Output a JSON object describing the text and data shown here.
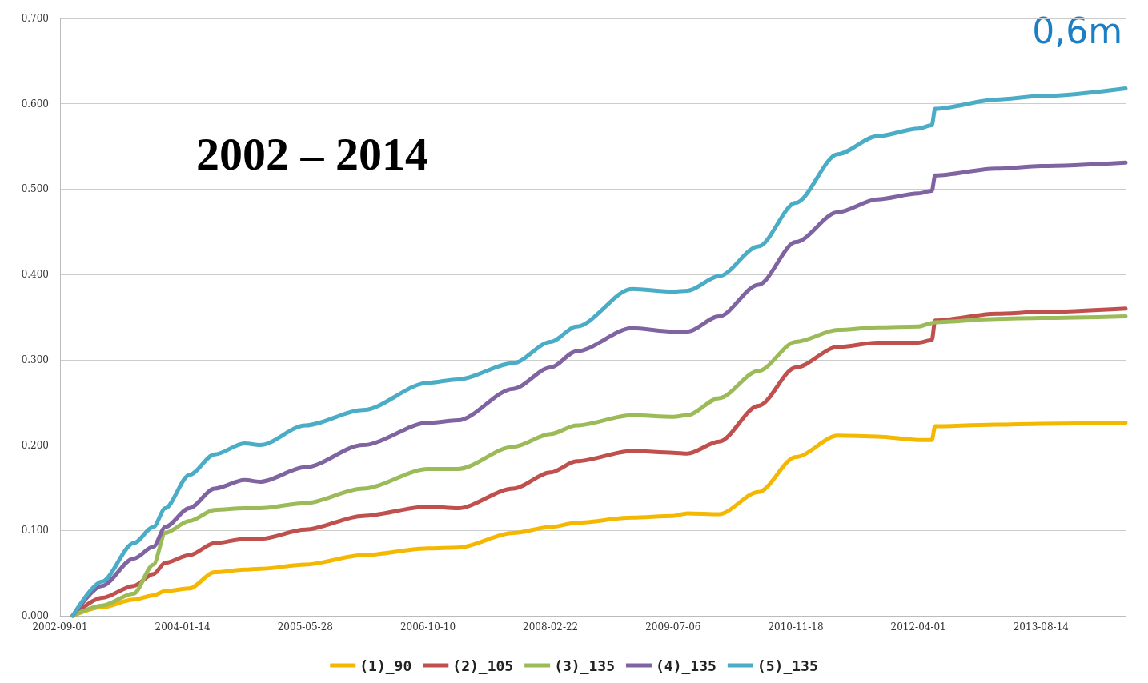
{
  "chart_data": {
    "type": "line",
    "x": [
      "2002-10-23",
      "2003-02-19",
      "2003-06-28",
      "2003-09-17",
      "2003-11-04",
      "2004-02-10",
      "2004-05-23",
      "2004-09-22",
      "2004-11-25",
      "2005-05-28",
      "2006-01-18",
      "2006-10-10",
      "2007-02-10",
      "2007-09-23",
      "2008-02-22",
      "2008-06-07",
      "2009-01-19",
      "2009-07-06",
      "2009-09-02",
      "2010-01-09",
      "2010-06-19",
      "2010-11-18",
      "2011-05-08",
      "2011-10-16",
      "2012-04-01",
      "2012-05-26",
      "2012-06-08",
      "2013-02-14",
      "2013-08-14",
      "2014-07-25"
    ],
    "series": [
      {
        "name": "(1)_90",
        "color": "#f5b800",
        "values": [
          0,
          0.01,
          0.019,
          0.024,
          0.029,
          0.032,
          0.051,
          0.054,
          0.055,
          0.06,
          0.071,
          0.079,
          0.08,
          0.097,
          0.104,
          0.109,
          0.115,
          0.117,
          0.12,
          0.119,
          0.145,
          0.186,
          0.211,
          0.21,
          0.206,
          0.206,
          0.222,
          0.224,
          0.225,
          0.226
        ]
      },
      {
        "name": "(2)_105",
        "color": "#c0504d",
        "values": [
          0,
          0.021,
          0.035,
          0.049,
          0.062,
          0.071,
          0.085,
          0.09,
          0.09,
          0.101,
          0.117,
          0.128,
          0.126,
          0.149,
          0.168,
          0.181,
          0.193,
          0.191,
          0.19,
          0.204,
          0.246,
          0.291,
          0.315,
          0.32,
          0.32,
          0.323,
          0.346,
          0.354,
          0.356,
          0.36
        ]
      },
      {
        "name": "(3)_135",
        "color": "#9bbb59",
        "values": [
          0,
          0.012,
          0.026,
          0.06,
          0.097,
          0.111,
          0.124,
          0.126,
          0.126,
          0.132,
          0.149,
          0.172,
          0.172,
          0.198,
          0.213,
          0.223,
          0.235,
          0.233,
          0.235,
          0.255,
          0.287,
          0.321,
          0.335,
          0.338,
          0.339,
          0.343,
          0.344,
          0.348,
          0.349,
          0.351
        ]
      },
      {
        "name": "(4)_135",
        "color": "#8064a2",
        "values": [
          0,
          0.035,
          0.067,
          0.081,
          0.104,
          0.126,
          0.149,
          0.159,
          0.157,
          0.174,
          0.2,
          0.226,
          0.229,
          0.266,
          0.291,
          0.31,
          0.337,
          0.333,
          0.333,
          0.351,
          0.388,
          0.438,
          0.473,
          0.488,
          0.495,
          0.498,
          0.516,
          0.524,
          0.527,
          0.531
        ]
      },
      {
        "name": "(5)_135",
        "color": "#4bacc6",
        "values": [
          0,
          0.04,
          0.085,
          0.104,
          0.126,
          0.165,
          0.189,
          0.202,
          0.2,
          0.223,
          0.241,
          0.273,
          0.277,
          0.296,
          0.321,
          0.339,
          0.383,
          0.38,
          0.381,
          0.398,
          0.433,
          0.484,
          0.541,
          0.562,
          0.571,
          0.575,
          0.594,
          0.605,
          0.609,
          0.618
        ]
      }
    ],
    "xlim": [
      "2002-09-01",
      "2014-07-25"
    ],
    "xticks": [
      "2002-09-01",
      "2004-01-14",
      "2005-05-28",
      "2006-10-10",
      "2008-02-22",
      "2009-07-06",
      "2010-11-18",
      "2012-04-01",
      "2013-08-14"
    ],
    "ylim": [
      0,
      0.7
    ],
    "yticks": [
      {
        "value": 0,
        "label": "0.000"
      },
      {
        "value": 0.1,
        "label": "0.100"
      },
      {
        "value": 0.2,
        "label": "0.200"
      },
      {
        "value": 0.3,
        "label": "0.300"
      },
      {
        "value": 0.4,
        "label": "0.400"
      },
      {
        "value": 0.5,
        "label": "0.500"
      },
      {
        "value": 0.6,
        "label": "0.600"
      },
      {
        "value": 0.7,
        "label": "0.700"
      }
    ],
    "annotations": [
      "2002 – 2014",
      "0,6m"
    ],
    "grid": "y",
    "legend": "bottom",
    "marker": "none",
    "line_style": "solid"
  }
}
